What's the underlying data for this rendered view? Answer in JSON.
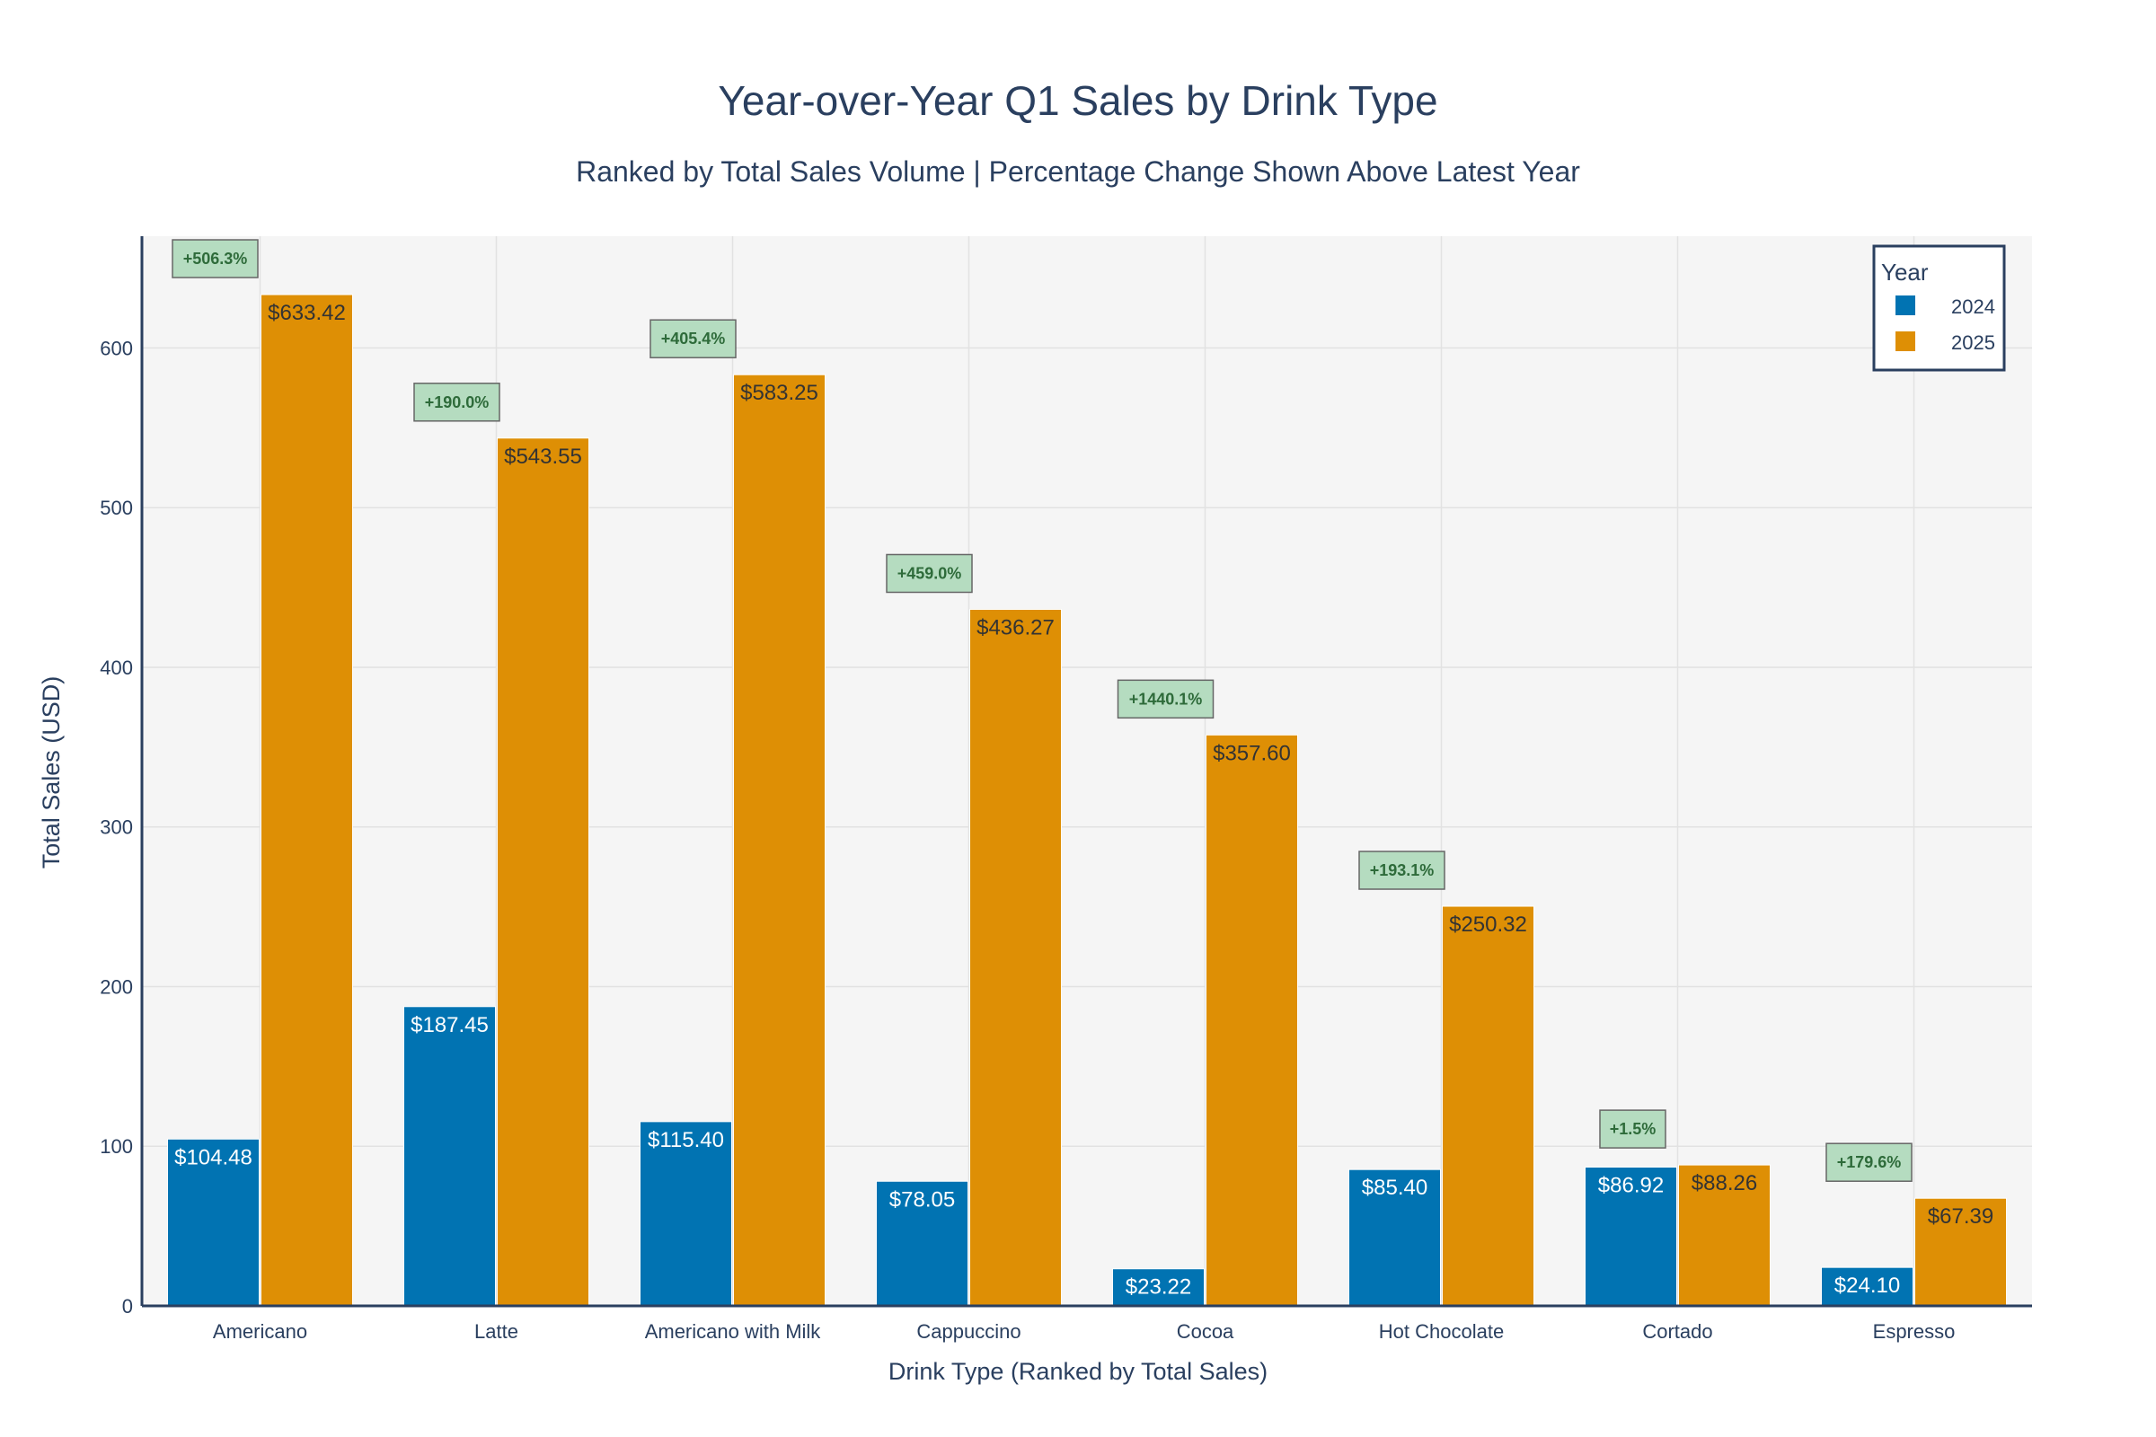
{
  "chart_data": {
    "type": "bar",
    "title": "Year-over-Year Q1 Sales by Drink Type",
    "subtitle": "Ranked by Total Sales Volume | Percentage Change Shown Above Latest Year",
    "xlabel": "Drink Type (Ranked by Total Sales)",
    "ylabel": "Total Sales (USD)",
    "ylim": [
      0,
      670
    ],
    "yticks": [
      0,
      100,
      200,
      300,
      400,
      500,
      600
    ],
    "grid": true,
    "legend": {
      "title": "Year",
      "position": "top-right"
    },
    "categories": [
      "Americano",
      "Latte",
      "Americano with Milk",
      "Cappuccino",
      "Cocoa",
      "Hot Chocolate",
      "Cortado",
      "Espresso"
    ],
    "series": [
      {
        "name": "2024",
        "color": "#0173b2",
        "values": [
          104.48,
          187.45,
          115.4,
          78.05,
          23.22,
          85.4,
          86.92,
          24.1
        ],
        "labels": [
          "$104.48",
          "$187.45",
          "$115.40",
          "$78.05",
          "$23.22",
          "$85.40",
          "$86.92",
          "$24.10"
        ],
        "label_color": "#ffffff"
      },
      {
        "name": "2025",
        "color": "#de8f05",
        "values": [
          633.42,
          543.55,
          583.25,
          436.27,
          357.6,
          250.32,
          88.26,
          67.39
        ],
        "labels": [
          "$633.42",
          "$543.55",
          "$583.25",
          "$436.27",
          "$357.60",
          "$250.32",
          "$88.26",
          "$67.39"
        ],
        "label_color": "#333333"
      }
    ],
    "annotations": [
      "+506.3%",
      "+190.0%",
      "+405.4%",
      "+459.0%",
      "+1440.1%",
      "+193.1%",
      "+1.5%",
      "+179.6%"
    ],
    "annotation_fill": "#b5dcc0",
    "annotation_border": "#666666"
  }
}
